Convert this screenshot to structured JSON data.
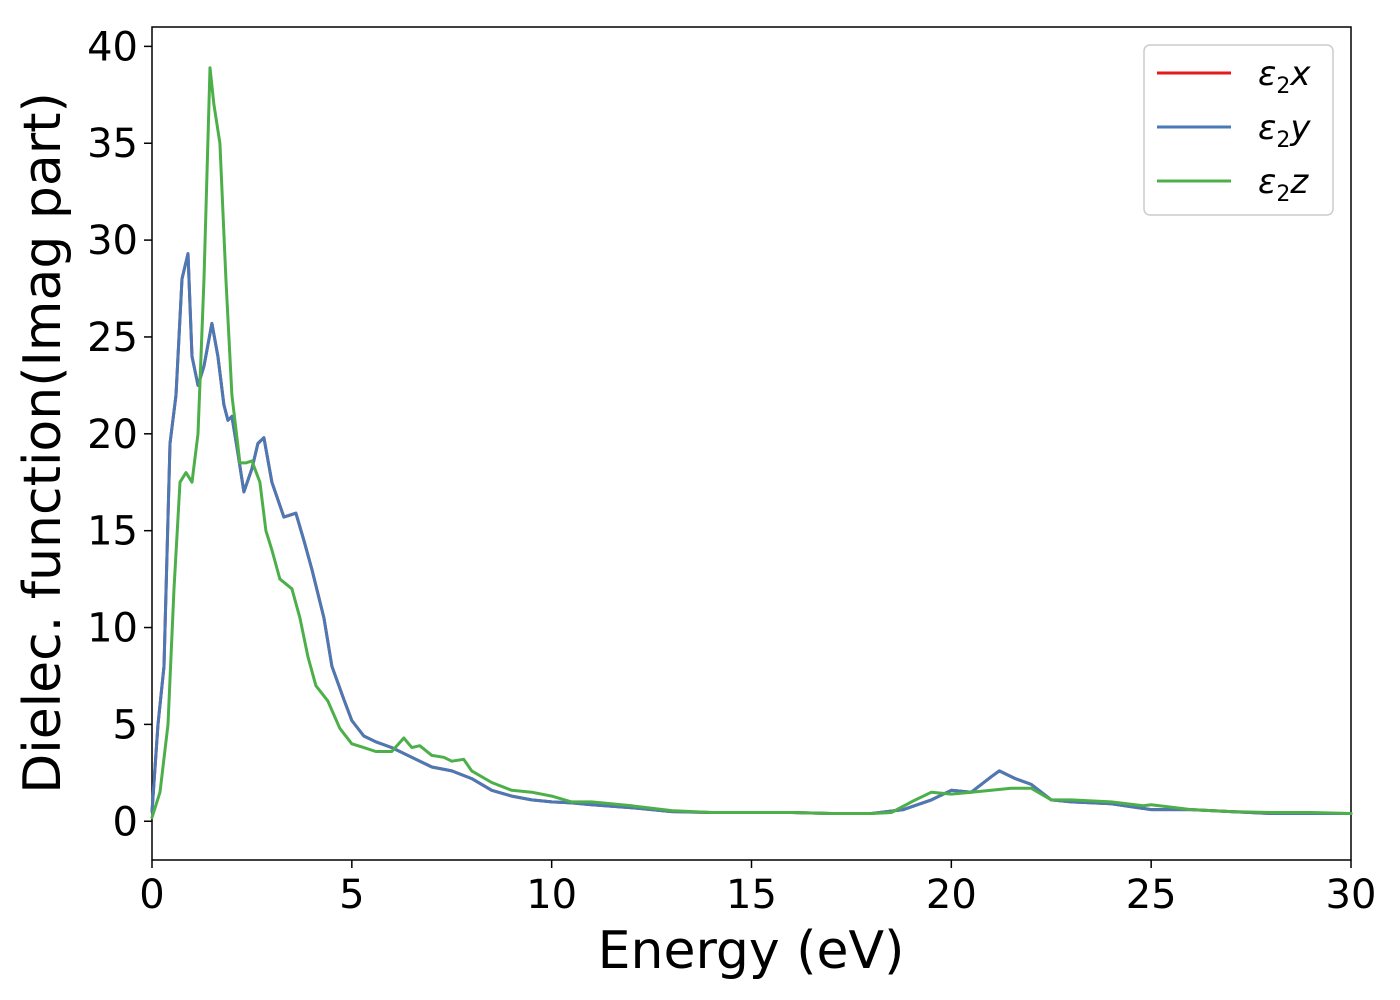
{
  "chart_data": {
    "type": "line",
    "title": "",
    "xlabel": "Energy (eV)",
    "ylabel": "Dielec. function(Imag part)",
    "xlim": [
      0,
      30
    ],
    "ylim": [
      -2,
      41
    ],
    "xticks": [
      "0",
      "5",
      "10",
      "15",
      "20",
      "25",
      "30"
    ],
    "yticks": [
      "0",
      "5",
      "10",
      "15",
      "20",
      "25",
      "30",
      "35",
      "40"
    ],
    "legend_position": "top-right",
    "grid": false,
    "series": [
      {
        "name": "ε2x",
        "label_main": "ε",
        "label_sub": "2",
        "label_var": "x",
        "color": "#e41a1c",
        "x": [
          0,
          0.15,
          0.3,
          0.45,
          0.6,
          0.75,
          0.9,
          1.0,
          1.15,
          1.3,
          1.5,
          1.65,
          1.8,
          1.9,
          2.0,
          2.15,
          2.3,
          2.5,
          2.65,
          2.8,
          3.0,
          3.3,
          3.6,
          3.8,
          4.0,
          4.3,
          4.5,
          4.8,
          5.0,
          5.3,
          5.6,
          6.0,
          6.5,
          7.0,
          7.5,
          8.0,
          8.5,
          9.0,
          9.5,
          10.0,
          10.5,
          11.0,
          12.0,
          13.0,
          14.0,
          15.0,
          16.0,
          17.0,
          18.0,
          18.8,
          19.5,
          20.0,
          20.5,
          21.0,
          21.2,
          21.6,
          22.0,
          22.5,
          23.0,
          24.0,
          25.0,
          26.0,
          27.0,
          28.0,
          29.0,
          30.0
        ],
        "y": [
          0.5,
          5.0,
          8.0,
          19.5,
          22.0,
          28.0,
          29.3,
          24.0,
          22.5,
          23.5,
          25.7,
          24.0,
          21.5,
          20.7,
          20.9,
          19.0,
          17.0,
          18.2,
          19.5,
          19.8,
          17.5,
          15.7,
          15.9,
          14.5,
          13.0,
          10.5,
          8.0,
          6.3,
          5.2,
          4.4,
          4.1,
          3.8,
          3.3,
          2.8,
          2.6,
          2.2,
          1.6,
          1.3,
          1.1,
          1.0,
          0.95,
          0.85,
          0.7,
          0.5,
          0.45,
          0.45,
          0.45,
          0.4,
          0.4,
          0.6,
          1.1,
          1.6,
          1.5,
          2.3,
          2.6,
          2.2,
          1.9,
          1.1,
          1.0,
          0.9,
          0.6,
          0.6,
          0.5,
          0.4,
          0.4,
          0.4
        ]
      },
      {
        "name": "ε2y",
        "label_main": "ε",
        "label_sub": "2",
        "label_var": "y",
        "color": "#4a7ab5",
        "x": [
          0,
          0.15,
          0.3,
          0.45,
          0.6,
          0.75,
          0.9,
          1.0,
          1.15,
          1.3,
          1.5,
          1.65,
          1.8,
          1.9,
          2.0,
          2.15,
          2.3,
          2.5,
          2.65,
          2.8,
          3.0,
          3.3,
          3.6,
          3.8,
          4.0,
          4.3,
          4.5,
          4.8,
          5.0,
          5.3,
          5.6,
          6.0,
          6.5,
          7.0,
          7.5,
          8.0,
          8.5,
          9.0,
          9.5,
          10.0,
          10.5,
          11.0,
          12.0,
          13.0,
          14.0,
          15.0,
          16.0,
          17.0,
          18.0,
          18.8,
          19.5,
          20.0,
          20.5,
          21.0,
          21.2,
          21.6,
          22.0,
          22.5,
          23.0,
          24.0,
          25.0,
          26.0,
          27.0,
          28.0,
          29.0,
          30.0
        ],
        "y": [
          0.5,
          5.0,
          8.0,
          19.5,
          22.0,
          28.0,
          29.3,
          24.0,
          22.5,
          23.5,
          25.7,
          24.0,
          21.5,
          20.7,
          20.9,
          19.0,
          17.0,
          18.2,
          19.5,
          19.8,
          17.5,
          15.7,
          15.9,
          14.5,
          13.0,
          10.5,
          8.0,
          6.3,
          5.2,
          4.4,
          4.1,
          3.8,
          3.3,
          2.8,
          2.6,
          2.2,
          1.6,
          1.3,
          1.1,
          1.0,
          0.95,
          0.85,
          0.7,
          0.5,
          0.45,
          0.45,
          0.45,
          0.4,
          0.4,
          0.6,
          1.1,
          1.6,
          1.5,
          2.3,
          2.6,
          2.2,
          1.9,
          1.1,
          1.0,
          0.9,
          0.6,
          0.6,
          0.5,
          0.4,
          0.4,
          0.4
        ]
      },
      {
        "name": "ε2z",
        "label_main": "ε",
        "label_sub": "2",
        "label_var": "z",
        "color": "#4daf4a",
        "x": [
          0,
          0.2,
          0.4,
          0.55,
          0.7,
          0.85,
          1.0,
          1.15,
          1.3,
          1.45,
          1.55,
          1.7,
          1.85,
          2.0,
          2.2,
          2.35,
          2.5,
          2.7,
          2.85,
          3.0,
          3.2,
          3.5,
          3.7,
          3.9,
          4.1,
          4.4,
          4.7,
          5.0,
          5.3,
          5.6,
          6.0,
          6.3,
          6.5,
          6.7,
          7.0,
          7.3,
          7.5,
          7.8,
          8.0,
          8.5,
          9.0,
          9.5,
          10.0,
          10.5,
          11.0,
          12.0,
          13.0,
          14.0,
          15.0,
          16.0,
          17.0,
          18.0,
          18.5,
          19.0,
          19.5,
          20.0,
          20.5,
          21.0,
          21.5,
          22.0,
          22.5,
          23.0,
          24.0,
          24.8,
          25.0,
          26.0,
          27.0,
          28.0,
          29.0,
          30.0
        ],
        "y": [
          0.2,
          1.5,
          5.0,
          12.0,
          17.5,
          18.0,
          17.5,
          20.0,
          28.0,
          38.9,
          37.0,
          35.0,
          28.0,
          22.0,
          18.5,
          18.5,
          18.6,
          17.5,
          15.0,
          14.0,
          12.5,
          12.0,
          10.5,
          8.5,
          7.0,
          6.2,
          4.8,
          4.0,
          3.8,
          3.6,
          3.6,
          4.3,
          3.8,
          3.9,
          3.4,
          3.3,
          3.1,
          3.2,
          2.6,
          2.0,
          1.6,
          1.5,
          1.3,
          1.0,
          1.0,
          0.8,
          0.55,
          0.45,
          0.45,
          0.45,
          0.4,
          0.4,
          0.45,
          1.0,
          1.5,
          1.4,
          1.5,
          1.6,
          1.7,
          1.7,
          1.1,
          1.1,
          1.0,
          0.8,
          0.85,
          0.6,
          0.5,
          0.45,
          0.45,
          0.4
        ]
      }
    ]
  }
}
